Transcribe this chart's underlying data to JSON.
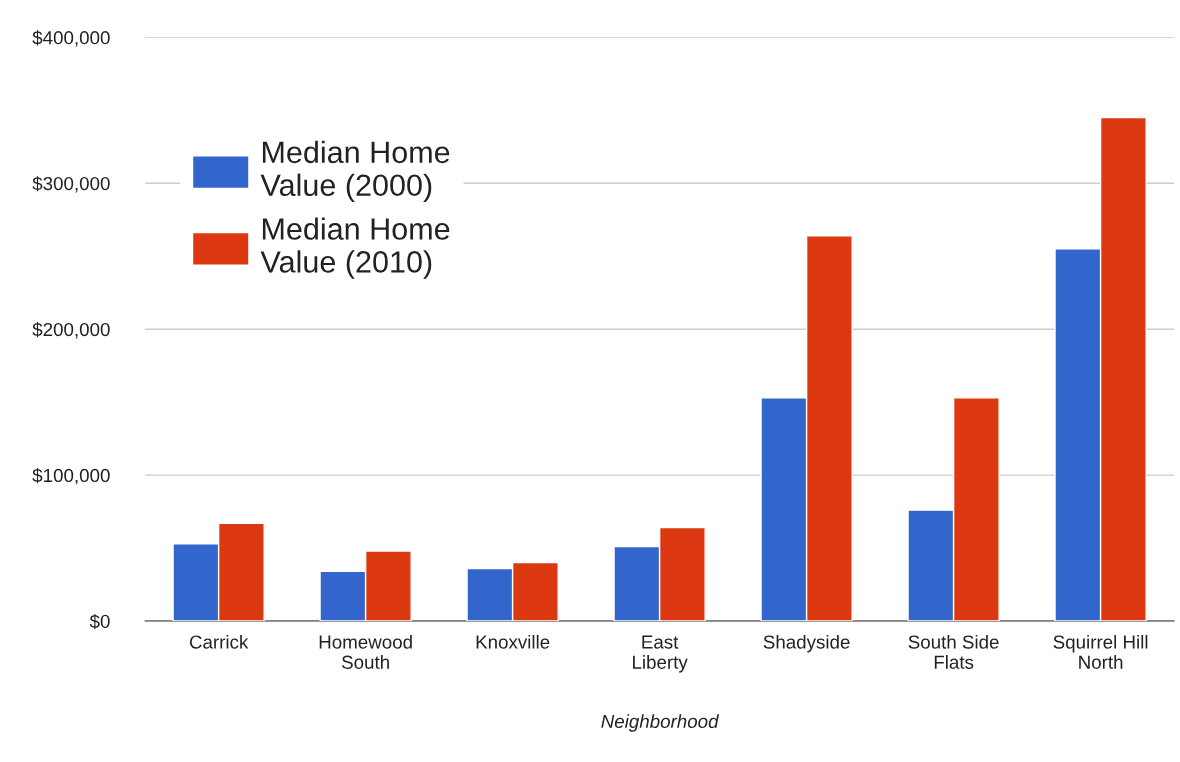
{
  "chart_data": {
    "type": "bar",
    "xlabel": "Neighborhood",
    "categories": [
      "Carrick",
      "Homewood\nSouth",
      "Knoxville",
      "East\nLiberty",
      "Shadyside",
      "South Side\nFlats",
      "Squirrel Hill\nNorth"
    ],
    "series": [
      {
        "name": "Median Home Value (2000)",
        "color": "#3366cc",
        "values": [
          53000,
          34000,
          36000,
          51000,
          153000,
          76000,
          255000
        ]
      },
      {
        "name": "Median Home Value (2010)",
        "color": "#dc3912",
        "values": [
          67000,
          48000,
          40000,
          64000,
          264000,
          153000,
          345000
        ]
      }
    ],
    "ylim": [
      0,
      400000
    ],
    "yticks": [
      {
        "value": 0,
        "label": "$0"
      },
      {
        "value": 100000,
        "label": "$100,000"
      },
      {
        "value": 200000,
        "label": "$200,000"
      },
      {
        "value": 300000,
        "label": "$300,000"
      },
      {
        "value": 400000,
        "label": "$400,000"
      }
    ],
    "grid": "y",
    "legend": "top left"
  }
}
